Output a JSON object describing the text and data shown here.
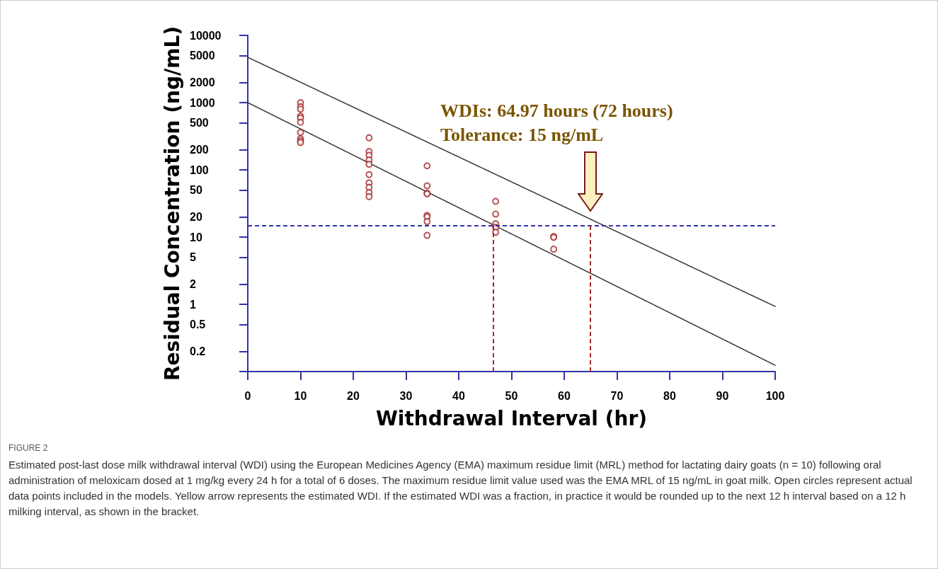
{
  "chart_data": {
    "type": "scatter",
    "xlabel": "Withdrawal Interval (hr)",
    "ylabel": "Residual Concentration (ng/mL)",
    "log": "y",
    "xlim": [
      0,
      100
    ],
    "xticks": [
      0,
      10,
      20,
      30,
      40,
      50,
      60,
      70,
      80,
      90,
      100
    ],
    "ylim": [
      0.1,
      10000
    ],
    "yticks": [
      {
        "value": 0.1,
        "label": null
      },
      0.2,
      0.5,
      1,
      2,
      5,
      10,
      20,
      50,
      100,
      200,
      500,
      1000,
      2000,
      5000,
      10000
    ],
    "grid": false,
    "legend": false,
    "marker": "circle",
    "series": [
      {
        "color": "#a52a2a",
        "x": [
          10,
          10,
          10,
          10,
          10,
          10,
          10,
          10,
          10,
          10,
          23,
          23,
          23,
          23,
          23,
          23,
          23,
          23,
          23,
          23,
          34,
          34,
          34,
          34,
          34,
          34,
          34,
          34,
          47,
          47,
          47,
          47,
          47,
          58,
          58,
          58
        ],
        "values": [
          1000,
          870,
          800,
          630,
          590,
          510,
          360,
          290,
          270,
          255,
          300,
          187,
          165,
          140,
          121,
          85,
          64,
          55,
          46,
          40,
          115,
          58,
          45,
          44,
          21,
          20,
          17,
          10.6,
          34,
          22,
          15.8,
          14,
          11.8,
          10.2,
          9.9,
          6.6
        ]
      },
      {
        "type": "line",
        "color": "#333333",
        "line_style": "dotted",
        "marker": "none",
        "x": [
          0,
          100
        ],
        "values": [
          4720,
          0.93
        ]
      },
      {
        "type": "line",
        "color": "#333333",
        "line_style": "dotted",
        "marker": "none",
        "x": [
          0,
          100
        ],
        "values": [
          1000,
          0.124
        ]
      }
    ],
    "ref_lines": [
      {
        "axis": "y",
        "value": 15,
        "label": null,
        "color": "#3333aa",
        "line_style": "dashed"
      },
      {
        "axis": "x",
        "value": 46.5,
        "label": null,
        "color": "#a52a2a",
        "line_style": "dashed"
      },
      {
        "axis": "x",
        "value": 64.97,
        "label": null,
        "color": "#a52a2a",
        "line_style": "dashed"
      }
    ],
    "annotations": [
      "WDIs: 64.97 hours (72 hours)\nTolerance: 15 ng/mL",
      "FIGURE 2",
      "Estimated post-last dose milk withdrawal interval (WDI) using the European Medicines Agency (EMA) maximum residue limit (MRL) method for lactating dairy goats (n = 10) following oral administration of meloxicam dosed at 1 mg/kg every 24 h for a total of 6 doses. The maximum residue limit value used was the EMA MRL of 15 ng/mL in goat milk. Open circles represent actual data points included in the models. Yellow arrow represents the estimated WDI. If the estimated WDI was a fraction, in practice it would be rounded up to the next 12 h interval based on a 12 h milking interval, as shown in the bracket."
    ]
  }
}
